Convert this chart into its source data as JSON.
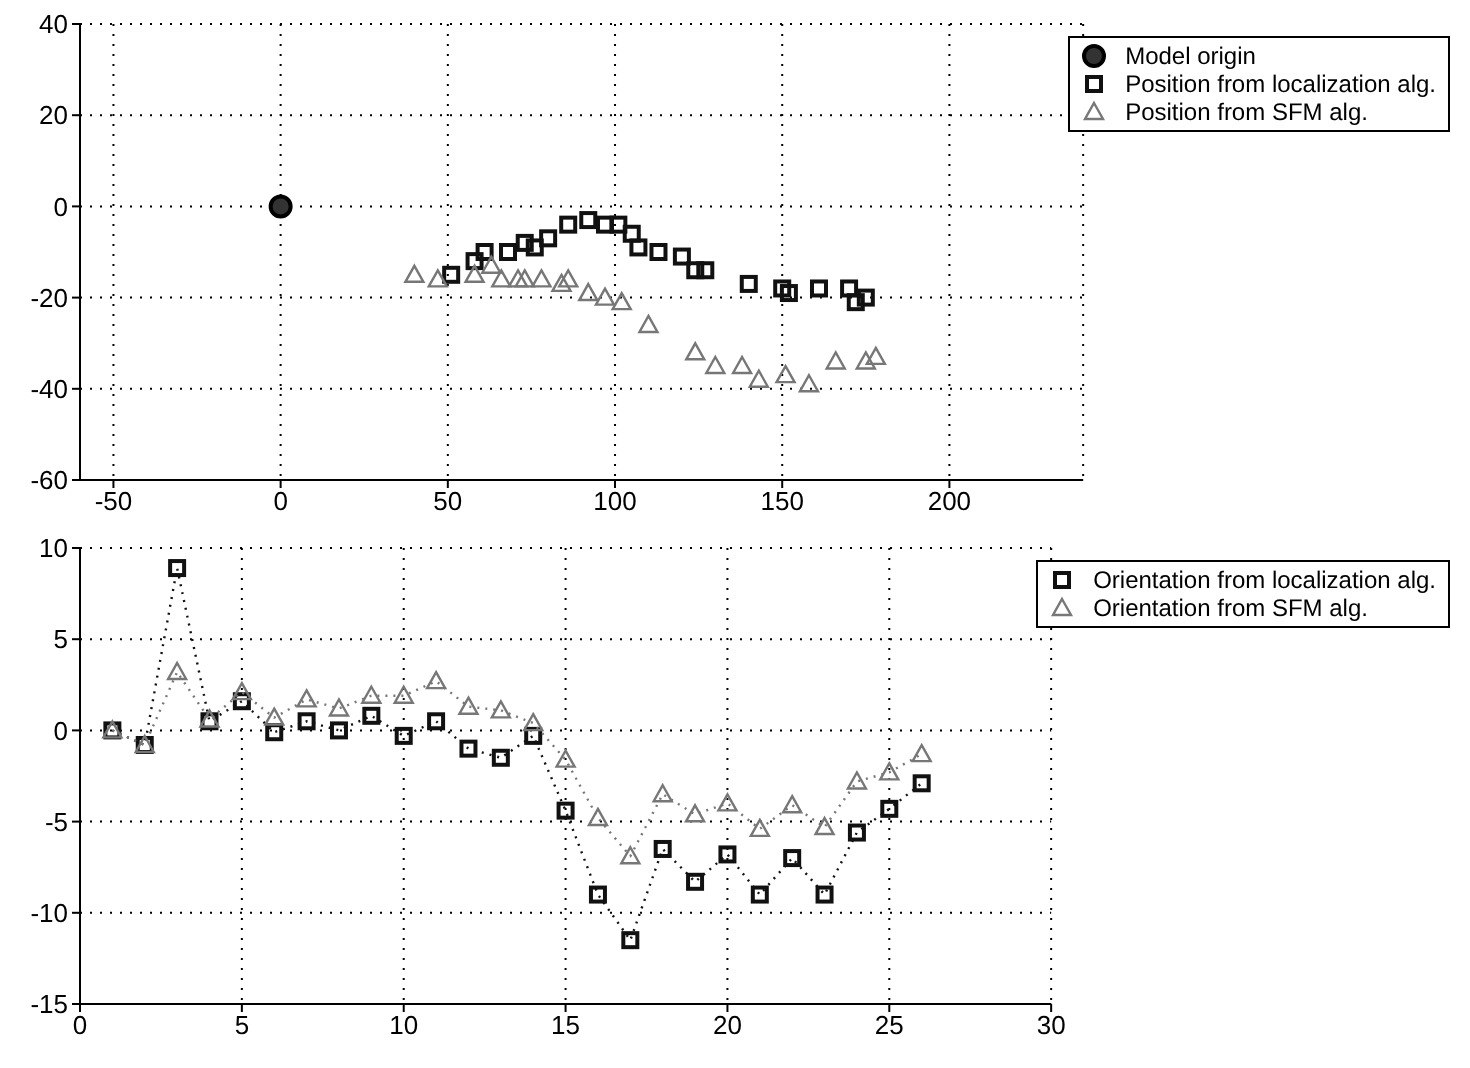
{
  "chart_data": [
    {
      "type": "scatter",
      "xlim": [
        -60,
        240
      ],
      "xticks": [
        -50,
        0,
        50,
        100,
        150,
        200
      ],
      "ylim": [
        -60,
        40
      ],
      "yticks": [
        -60,
        -40,
        -20,
        0,
        20,
        40
      ],
      "grid": true,
      "legend": "top right",
      "series": [
        {
          "name": "Model origin",
          "color": "#000000",
          "marker": "circle",
          "x": [
            0
          ],
          "values": [
            0
          ]
        },
        {
          "name": "Position from localization alg.",
          "color": "#111111",
          "marker": "square",
          "x": [
            51,
            58,
            61,
            68,
            73,
            76,
            80,
            86,
            92,
            97,
            101,
            105,
            107,
            113,
            120,
            124,
            127,
            140,
            150,
            152,
            161,
            170,
            172,
            175
          ],
          "values": [
            -15,
            -12,
            -10,
            -10,
            -8,
            -9,
            -7,
            -4,
            -3,
            -4,
            -4,
            -6,
            -9,
            -10,
            -11,
            -14,
            -14,
            -17,
            -18,
            -19,
            -18,
            -18,
            -21,
            -20
          ]
        },
        {
          "name": "Position from SFM alg.",
          "color": "#777777",
          "marker": "triangle",
          "x": [
            40,
            47,
            58,
            63,
            66,
            71,
            73,
            78,
            84,
            86,
            92,
            97,
            102,
            110,
            124,
            130,
            138,
            143,
            151,
            158,
            166,
            175,
            178
          ],
          "values": [
            -15,
            -16,
            -15,
            -13,
            -16,
            -16,
            -16,
            -16,
            -17,
            -16,
            -19,
            -20,
            -21,
            -26,
            -32,
            -35,
            -35,
            -38,
            -37,
            -39,
            -34,
            -34,
            -33
          ]
        }
      ]
    },
    {
      "type": "line",
      "xlim": [
        0,
        30
      ],
      "xticks": [
        0,
        5,
        10,
        15,
        20,
        25,
        30
      ],
      "ylim": [
        -15,
        10
      ],
      "yticks": [
        -15,
        -10,
        -5,
        0,
        5,
        10
      ],
      "grid": true,
      "legend": "top right",
      "line_style": "dotted",
      "x": [
        1,
        2,
        3,
        4,
        5,
        6,
        7,
        8,
        9,
        10,
        11,
        12,
        13,
        14,
        15,
        16,
        17,
        18,
        19,
        20,
        21,
        22,
        23,
        24,
        25,
        26
      ],
      "series": [
        {
          "name": "Orientation from localization alg.",
          "color": "#111111",
          "marker": "square",
          "values": [
            0,
            -0.8,
            8.9,
            0.5,
            1.6,
            -0.1,
            0.5,
            0,
            0.8,
            -0.3,
            0.5,
            -1,
            -1.5,
            -0.3,
            -4.4,
            -9,
            -11.5,
            -6.5,
            -8.3,
            -6.8,
            -9,
            -7,
            -9,
            -5.6,
            -4.3,
            -2.9
          ]
        },
        {
          "name": "Orientation from SFM alg.",
          "color": "#777777",
          "marker": "triangle",
          "values": [
            0,
            -0.8,
            3.2,
            0.6,
            2.1,
            0.7,
            1.7,
            1.2,
            1.9,
            1.9,
            2.7,
            1.3,
            1.1,
            0.4,
            -1.6,
            -4.8,
            -6.9,
            -3.5,
            -4.6,
            -4,
            -5.4,
            -4.1,
            -5.3,
            -2.8,
            -2.3,
            -1.3
          ]
        }
      ]
    }
  ]
}
